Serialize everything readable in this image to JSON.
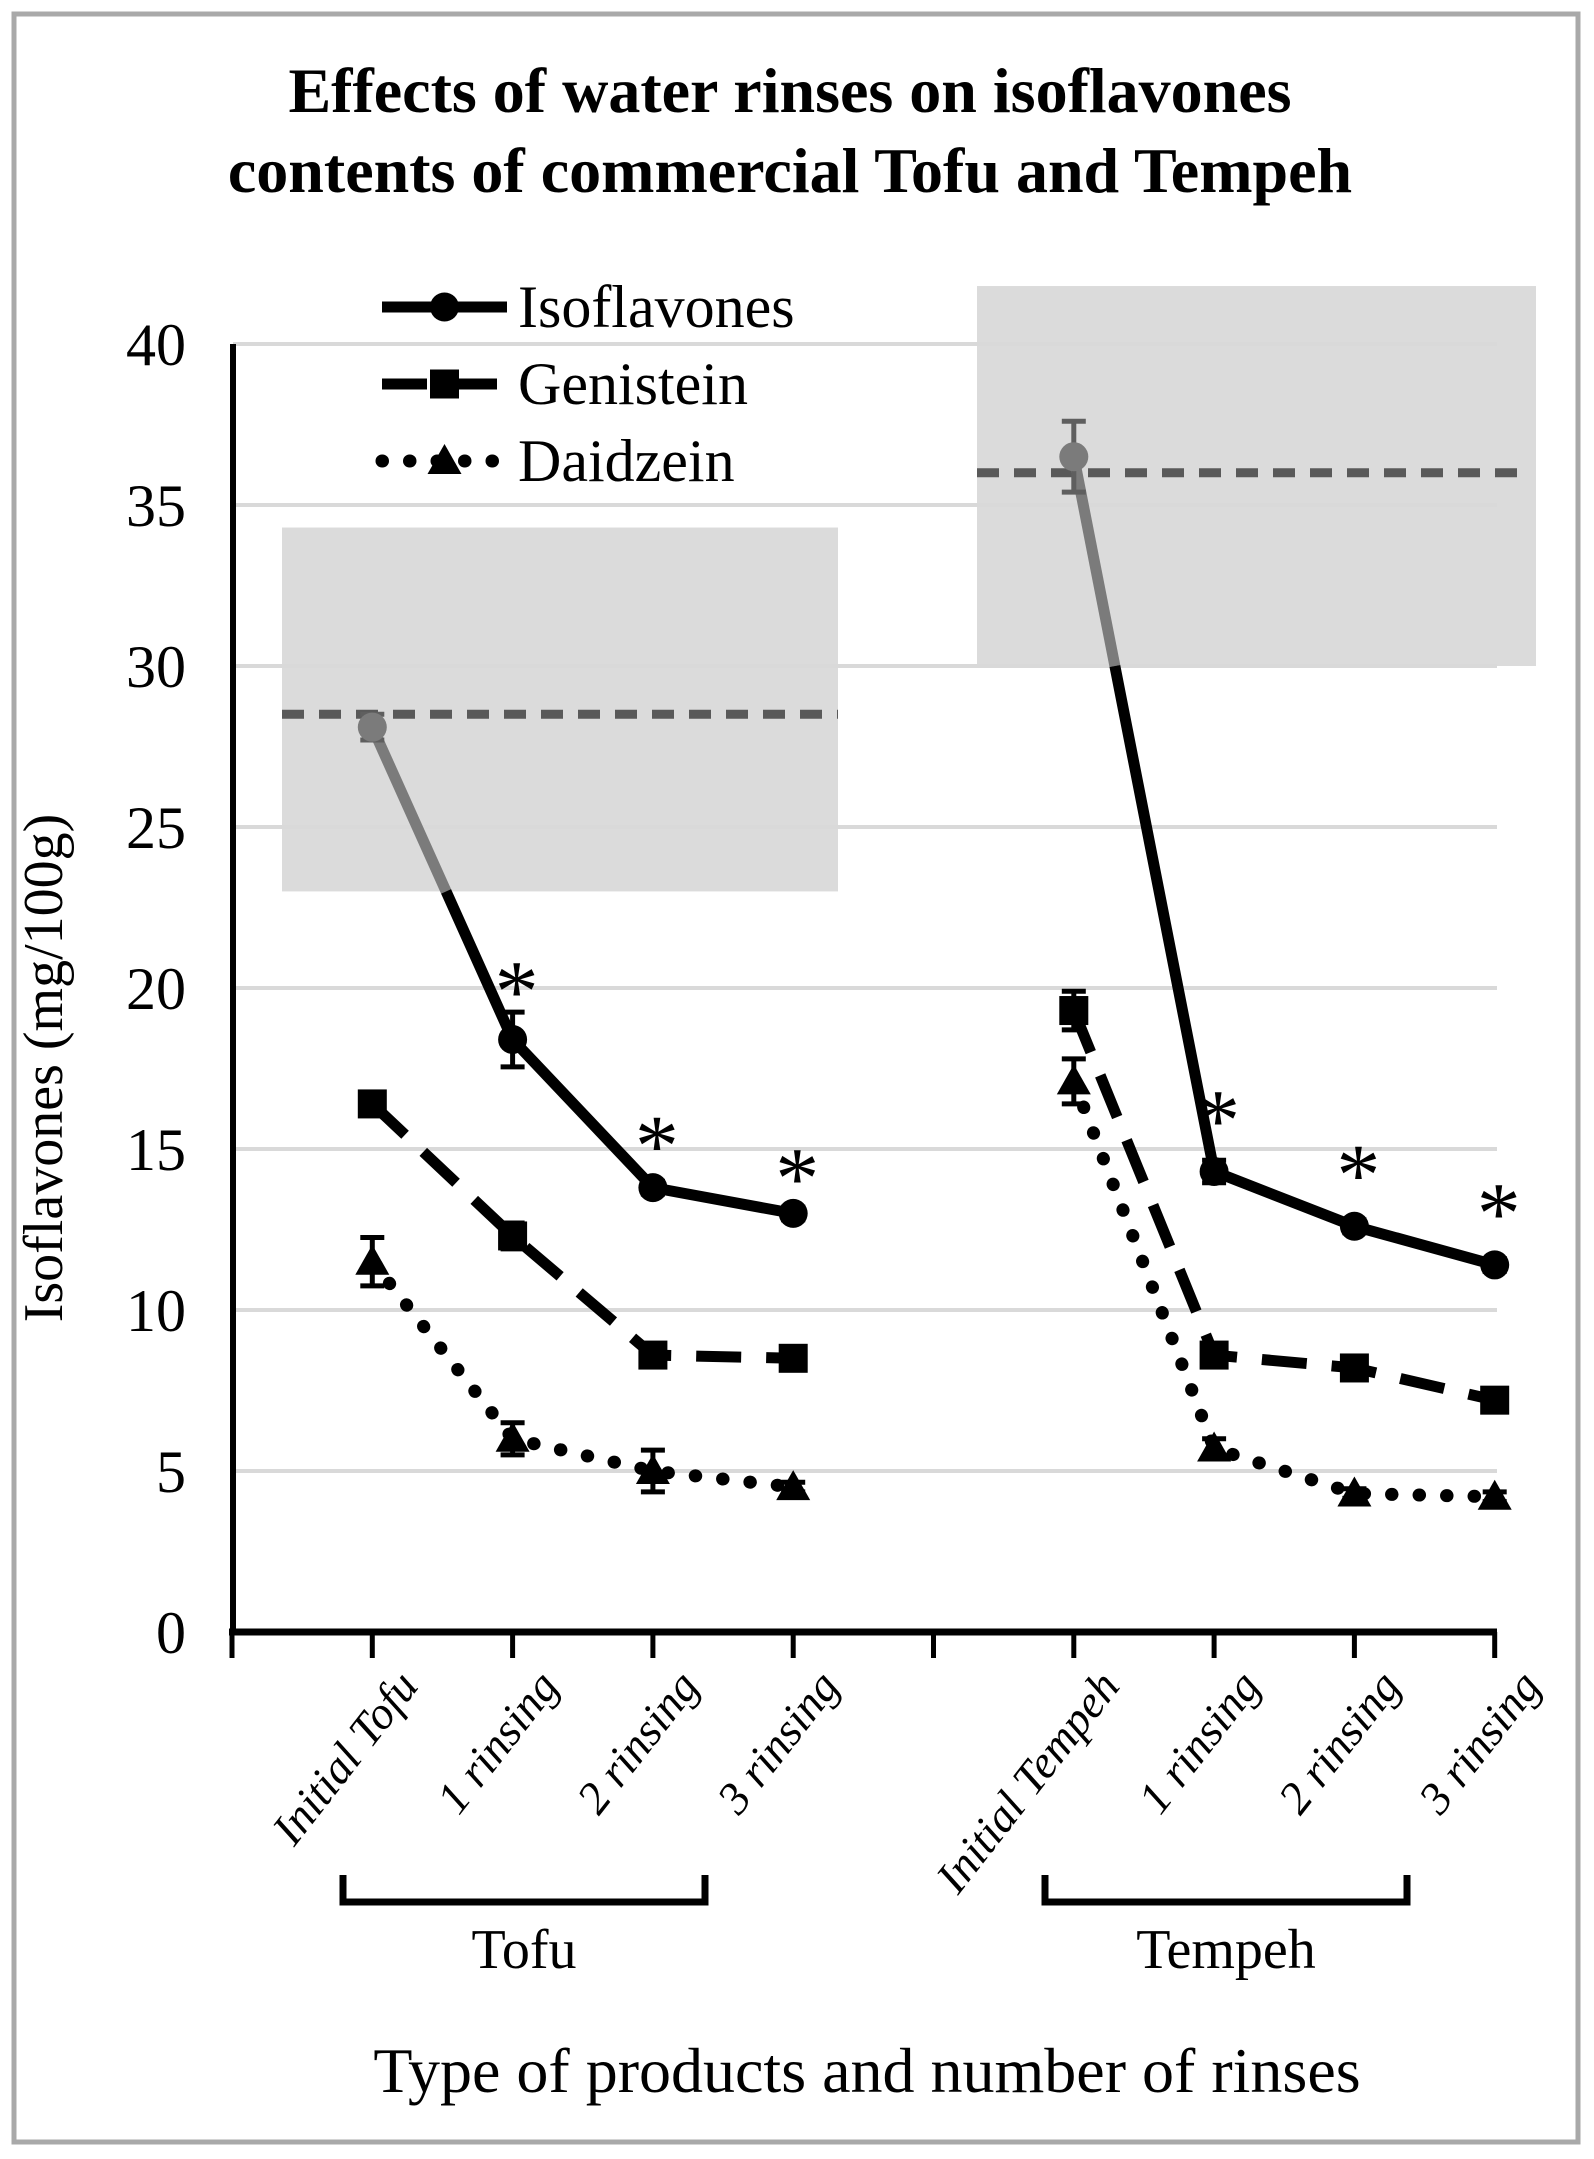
{
  "figure": {
    "title_line1": "Effects of water rinses on isoflavones",
    "title_line2": "contents of commercial Tofu and Tempeh",
    "border_color": "#a9a9a9"
  },
  "chart_data": {
    "type": "line",
    "title": "Effects of water rinses on isoflavones contents of commercial Tofu and Tempeh",
    "xlabel": "Type of products and number of rinses",
    "ylabel": "Isoflavones (mg/100g)",
    "ylim": [
      0,
      40
    ],
    "ytick_step": 5,
    "grid": true,
    "legend_position": "top-left-inside",
    "categories": [
      "Initial Tofu",
      "1 rinsing",
      "2 rinsing",
      "3 rinsing",
      "Initial Tempeh",
      "1 rinsing",
      "2 rinsing",
      "3 rinsing"
    ],
    "group_labels": [
      "Tofu",
      "Tempeh"
    ],
    "series": [
      {
        "name": "Isoflavones",
        "marker": "circle",
        "line_style": "solid",
        "values": [
          28.1,
          18.4,
          13.8,
          13.0,
          36.5,
          14.3,
          12.6,
          11.4
        ],
        "errors": [
          0.4,
          0.85,
          0.2,
          0.2,
          1.1,
          0.35,
          0.2,
          0.2
        ]
      },
      {
        "name": "Genistein",
        "marker": "square",
        "line_style": "dashed",
        "values": [
          16.4,
          12.3,
          8.6,
          8.5,
          19.3,
          8.6,
          8.2,
          7.2
        ],
        "errors": [
          0.35,
          0.4,
          0.35,
          0.15,
          0.6,
          0.25,
          0.25,
          0.2
        ]
      },
      {
        "name": "Daidzein",
        "marker": "triangle",
        "line_style": "dotted",
        "values": [
          11.5,
          6.0,
          5.0,
          4.5,
          17.1,
          5.7,
          4.3,
          4.2
        ],
        "errors": [
          0.75,
          0.5,
          0.65,
          0.15,
          0.7,
          0.3,
          0.15,
          0.15
        ]
      }
    ],
    "reference_bands": [
      {
        "group": "Tofu",
        "from": 23.0,
        "to": 34.3
      },
      {
        "group": "Tempeh",
        "from": 30.0,
        "to": 41.8
      }
    ],
    "reference_lines": [
      {
        "group": "Tofu",
        "value": 28.5
      },
      {
        "group": "Tempeh",
        "value": 36.0
      }
    ],
    "significance": {
      "symbol": "*",
      "marks": [
        {
          "series": "Isoflavones",
          "category_index": 1,
          "at_value": 20.9
        },
        {
          "series": "Isoflavones",
          "category_index": 2,
          "at_value": 16.1
        },
        {
          "series": "Isoflavones",
          "category_index": 3,
          "at_value": 15.1
        },
        {
          "series": "Isoflavones",
          "category_index": 5,
          "at_value": 16.9
        },
        {
          "series": "Isoflavones",
          "category_index": 6,
          "at_value": 15.2
        },
        {
          "series": "Isoflavones",
          "category_index": 7,
          "at_value": 14.0
        }
      ]
    },
    "colors": {
      "series": "#000000",
      "series_in_band": "#7b7b7b",
      "reference_line": "#595959",
      "band_fill": "#dbdbdb",
      "gridline": "#d9d9d9"
    }
  }
}
